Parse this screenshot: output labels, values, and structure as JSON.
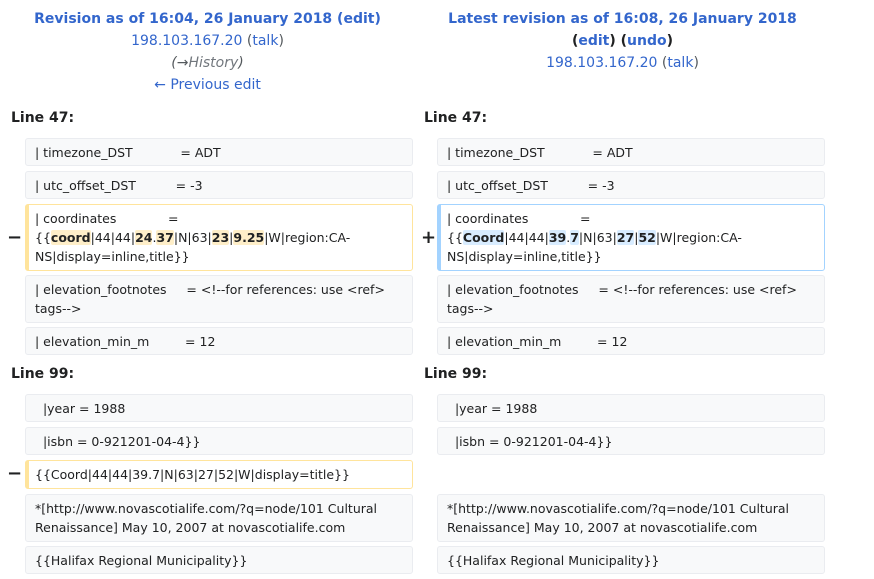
{
  "left_header": {
    "title_prefix": "Revision as of 16:04, 26 January 2018",
    "open_paren": " (",
    "edit": "edit",
    "close_paren": ")",
    "user": "198.103.167.20",
    "talk_open": " (",
    "talk": "talk",
    "talk_close": ")",
    "history_arrow": "(→",
    "history": "History",
    "history_close": ")",
    "previous_edit": "← Previous edit"
  },
  "right_header": {
    "title": "Latest revision as of 16:08, 26 January 2018",
    "open1": "(",
    "edit": "edit",
    "mid": ") (",
    "undo": "undo",
    "close": ")",
    "user": "198.103.167.20",
    "talk_open": " (",
    "talk": "talk",
    "talk_close": ")"
  },
  "sections": [
    {
      "label": "Line 47:"
    },
    {
      "label": "Line 99:"
    }
  ],
  "markers": {
    "minus": "−",
    "plus": "+"
  },
  "rows47": [
    "| timezone_DST            = ADT",
    "| utc_offset_DST          = -3",
    null,
    "| elevation_footnotes     = <!--for references: use <ref> tags-->",
    "| elevation_min_m         = 12"
  ],
  "coord_left": {
    "a": "| coordinates             = {{",
    "b": "coord",
    "c": "|44|44|",
    "d": "24",
    "e": ".",
    "f": "37",
    "g": "|N|63|",
    "h": "23",
    "i": "|",
    "j": "9.25",
    "k": "|W|region:CA-NS|display=inline,title}}"
  },
  "coord_right": {
    "a": "| coordinates             = {{",
    "b": "Coord",
    "c": "|44|44|",
    "d": "39",
    "e": ".",
    "f": "7",
    "g": "|N|63|",
    "h": "27",
    "i": "|",
    "j": "52",
    "k": "|W|region:CA-NS|display=inline,title}}"
  },
  "rows99": [
    "  |year = 1988",
    "  |isbn = 0-921201-04-4}}",
    "{{Coord|44|44|39.7|N|63|27|52|W|display=title}}",
    "*[http://www.novascotialife.com/?q=node/101 Cultural Renaissance] May 10, 2007 at novascotialife.com",
    "{{Halifax Regional Municipality}}"
  ]
}
